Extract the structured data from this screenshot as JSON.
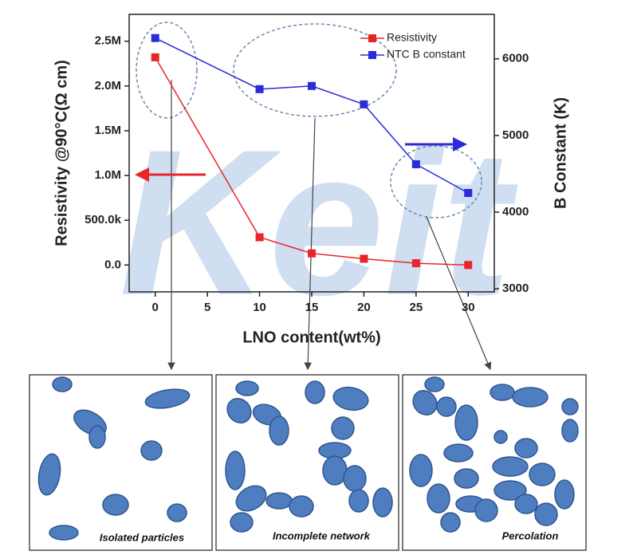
{
  "watermark": "Keit",
  "panels": [
    "Isolated particles",
    "Incomplete network",
    "Percolation"
  ],
  "chart_data": {
    "type": "line",
    "xlabel": "LNO content(wt%)",
    "ylabel": "Resistivity @90°C(Ω cm)",
    "y2label": "B Constant (K)",
    "x": [
      0,
      10,
      15,
      20,
      25,
      30
    ],
    "series": [
      {
        "name": "Resistivity",
        "color": "#e8262a",
        "values": [
          2320000,
          310000,
          130000,
          70000,
          20000,
          0
        ]
      },
      {
        "name": "NTC B constant",
        "color": "#2b2bd9",
        "axis": "y2",
        "values": [
          6271,
          5604,
          5646,
          5406,
          4625,
          4250
        ]
      }
    ],
    "xlim": [
      -2.5,
      32.5
    ],
    "xticks": [
      0,
      5,
      10,
      15,
      20,
      25,
      30
    ],
    "ylim": [
      -300000,
      2800000
    ],
    "yticks": [
      {
        "value": 0,
        "label": "0.0"
      },
      {
        "value": 500000,
        "label": "500.0k"
      },
      {
        "value": 1000000,
        "label": "1.0M"
      },
      {
        "value": 1500000,
        "label": "1.5M"
      },
      {
        "value": 2000000,
        "label": "2.0M"
      },
      {
        "value": 2500000,
        "label": "2.5M"
      }
    ],
    "y2lim": [
      2960,
      6580
    ],
    "y2ticks": [
      3000,
      4000,
      5000,
      6000
    ],
    "legend": "upper right"
  }
}
